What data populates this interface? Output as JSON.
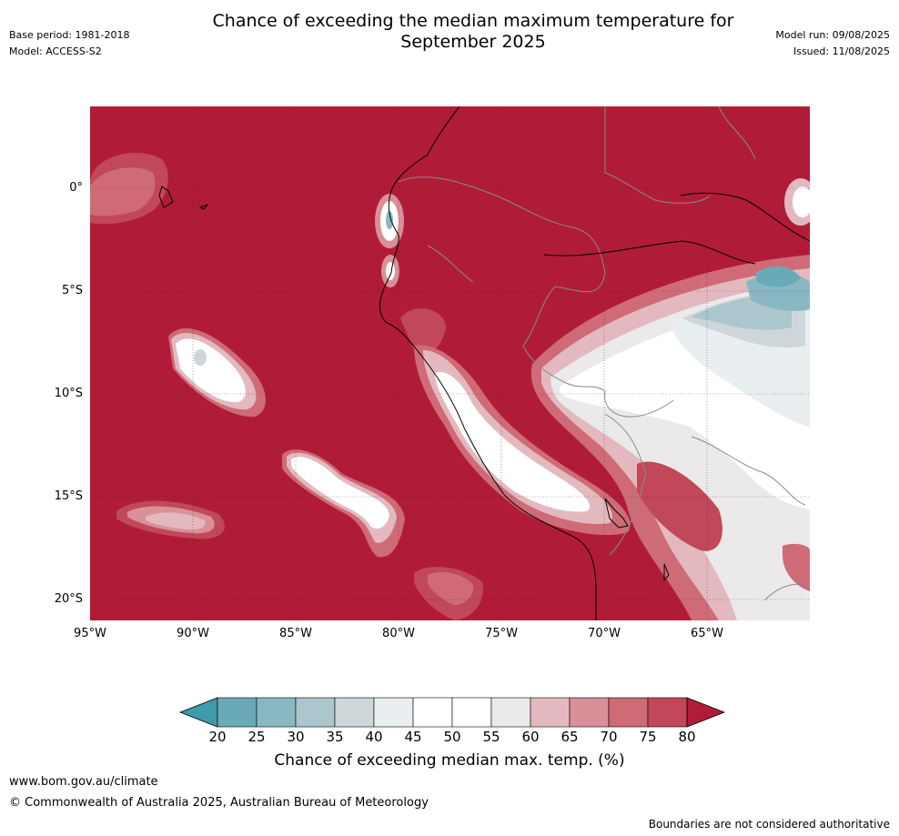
{
  "header": {
    "title_line1": "Chance of exceeding the median maximum temperature for",
    "title_line2": "September 2025",
    "base_period": "Base period: 1981-2018",
    "model": "Model: ACCESS-S2",
    "model_run": "Model run: 09/08/2025",
    "issued": "Issued: 11/08/2025"
  },
  "map": {
    "lat_labels": [
      "0°",
      "5°S",
      "10°S",
      "15°S",
      "20°S"
    ],
    "lon_labels": [
      "95°W",
      "90°W",
      "85°W",
      "80°W",
      "75°W",
      "70°W",
      "65°W"
    ],
    "colors": {
      "c80": "#b01c37",
      "c75": "#c14858",
      "c70": "#cf6b77",
      "c65": "#da9099",
      "c60": "#e3b9bf",
      "c55": "#ebe9ea",
      "c50": "#ffffff",
      "c45": "#e9eef1",
      "c40": "#cdd7da",
      "c35": "#abc6cc",
      "c30": "#8ab8c2",
      "c25": "#6aaab7",
      "c20": "#3f9aaa"
    }
  },
  "colorbar": {
    "ticks": [
      "20",
      "25",
      "30",
      "35",
      "40",
      "45",
      "50",
      "55",
      "60",
      "65",
      "70",
      "75",
      "80"
    ],
    "colors": [
      "#6aaab7",
      "#8ab8c2",
      "#abc6cc",
      "#cdd7da",
      "#e9eef1",
      "#ffffff",
      "#ffffff",
      "#ebe9ea",
      "#e3b9bf",
      "#da9099",
      "#cf6b77",
      "#c14858"
    ],
    "low_color": "#3f9aaa",
    "high_color": "#b01c37",
    "label": "Chance of exceeding median max. temp. (%)"
  },
  "footer": {
    "url": "www.bom.gov.au/climate",
    "copyright": "© Commonwealth of Australia 2025, Australian Bureau of Meteorology",
    "disclaimer": "Boundaries are not considered authoritative"
  }
}
